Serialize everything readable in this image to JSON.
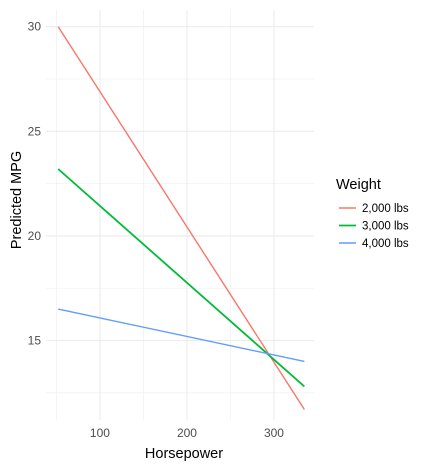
{
  "chart_data": {
    "type": "line",
    "xlabel": "Horsepower",
    "ylabel": "Predicted MPG",
    "xlim": [
      38,
      346
    ],
    "ylim": [
      11.2,
      30.8
    ],
    "x_ticks": [
      100,
      200,
      300
    ],
    "y_ticks": [
      15,
      20,
      25,
      30
    ],
    "grid": true,
    "legend": {
      "title": "Weight",
      "placement": "right"
    },
    "series": [
      {
        "name": "2,000 lbs",
        "color": "#F8766D",
        "x": [
          52,
          335
        ],
        "y": [
          30.0,
          11.7
        ]
      },
      {
        "name": "3,000 lbs",
        "color": "#00BA38",
        "x": [
          52,
          335
        ],
        "y": [
          23.2,
          12.8
        ]
      },
      {
        "name": "4,000 lbs",
        "color": "#619CFF",
        "x": [
          52,
          335
        ],
        "y": [
          16.5,
          14.0
        ]
      }
    ]
  }
}
